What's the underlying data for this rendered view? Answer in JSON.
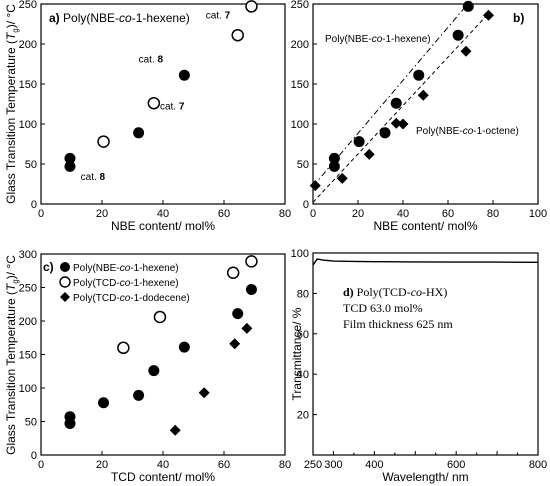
{
  "chart_data": [
    {
      "id": "a",
      "type": "scatter",
      "panel_label": "a)",
      "title": "Poly(NBE-co-1-hexene)",
      "xlabel": "NBE content/ mol%",
      "ylabel": "Glass Transition Temperature (Tg)/ °C",
      "xlim": [
        0,
        80
      ],
      "ylim": [
        0,
        250
      ],
      "xticks": [
        0,
        20,
        40,
        60,
        80
      ],
      "yticks": [
        0,
        50,
        100,
        150,
        200,
        250
      ],
      "series": [
        {
          "marker": "filled-circle",
          "x": [
            9.5,
            9.5,
            32,
            47
          ],
          "y": [
            47,
            57,
            89,
            161
          ]
        },
        {
          "marker": "open-circle",
          "x": [
            20.5,
            37,
            64.5,
            69
          ],
          "y": [
            78,
            126,
            211,
            247
          ]
        }
      ],
      "annotations": [
        {
          "text": "cat. ",
          "bold": "8",
          "x": 13,
          "y": 30
        },
        {
          "text": "cat. ",
          "bold": "8",
          "x": 32,
          "y": 177
        },
        {
          "text": "cat. ",
          "bold": "7",
          "x": 39,
          "y": 118
        },
        {
          "text": "cat. ",
          "bold": "7",
          "x": 54,
          "y": 232
        }
      ]
    },
    {
      "id": "b",
      "type": "scatter",
      "panel_label": "b)",
      "xlabel": "NBE content/ mol%",
      "xlim": [
        0,
        100
      ],
      "ylim": [
        0,
        250
      ],
      "xticks": [
        0,
        20,
        40,
        60,
        80,
        100
      ],
      "yticks": [
        0,
        50,
        100,
        150,
        200,
        250
      ],
      "series": [
        {
          "name": "Poly(NBE-co-1-hexene)",
          "marker": "filled-circle",
          "x": [
            9.5,
            9.5,
            20.5,
            32,
            37,
            47,
            64.5,
            69
          ],
          "y": [
            47,
            57,
            78,
            89,
            126,
            161,
            211,
            247
          ]
        },
        {
          "name": "Poly(NBE-co-1-octene)",
          "marker": "filled-diamond",
          "x": [
            1,
            13,
            25,
            37,
            40,
            49,
            68,
            78
          ],
          "y": [
            23,
            32,
            62,
            101,
            100,
            136,
            191,
            236
          ]
        }
      ],
      "fits": [
        {
          "style": "dash-dot",
          "x": [
            0,
            70
          ],
          "y": [
            22,
            254
          ]
        },
        {
          "style": "dashed",
          "x": [
            0,
            78
          ],
          "y": [
            2,
            238
          ]
        }
      ]
    },
    {
      "id": "c",
      "type": "scatter",
      "panel_label": "c)",
      "xlabel": "TCD content/ mol%",
      "ylabel": "Glass Transition Temperature (Tg)/ °C",
      "xlim": [
        0,
        80
      ],
      "ylim": [
        0,
        300
      ],
      "xticks": [
        0,
        20,
        40,
        60,
        80
      ],
      "yticks": [
        0,
        50,
        100,
        150,
        200,
        250,
        300
      ],
      "series": [
        {
          "name": "Poly(NBE-co-1-hexene)",
          "marker": "filled-circle",
          "x": [
            9.5,
            9.5,
            20.5,
            32,
            37,
            47,
            64.5,
            69
          ],
          "y": [
            47,
            57,
            78,
            89,
            126,
            161,
            211,
            247
          ]
        },
        {
          "name": "Poly(TCD-co-1-hexene)",
          "marker": "open-circle",
          "x": [
            27,
            39,
            63,
            69
          ],
          "y": [
            160,
            206,
            272,
            289
          ]
        },
        {
          "name": "Poly(TCD-co-1-dodecene)",
          "marker": "filled-diamond",
          "x": [
            44,
            53.5,
            63.5,
            67.5
          ],
          "y": [
            37,
            93,
            166,
            189
          ]
        }
      ]
    },
    {
      "id": "d",
      "type": "line",
      "panel_label": "d)",
      "title": "Poly(TCD-co-HX)",
      "info_lines": [
        "TCD 63.0 mol%",
        "Film thickness 625 nm"
      ],
      "xlabel": "Wavelength/ nm",
      "ylabel": "Transmittance/ %",
      "xlim": [
        250,
        800
      ],
      "ylim": [
        0,
        100
      ],
      "xticks": [
        250,
        300,
        400,
        500,
        600,
        700,
        800
      ],
      "xtick_labels": [
        "250",
        "300",
        "400",
        "",
        "600",
        "",
        "800"
      ],
      "yticks": [
        0,
        20,
        40,
        60,
        80,
        100
      ],
      "ytick_labels": [
        "",
        "20",
        "40",
        "60",
        "80",
        "100"
      ],
      "series": [
        {
          "x": [
            250,
            260,
            275,
            300,
            350,
            400,
            500,
            600,
            700,
            800
          ],
          "y": [
            94,
            97,
            96.5,
            96,
            95.8,
            95.7,
            95.6,
            95.5,
            95.5,
            95.4
          ]
        }
      ]
    }
  ]
}
